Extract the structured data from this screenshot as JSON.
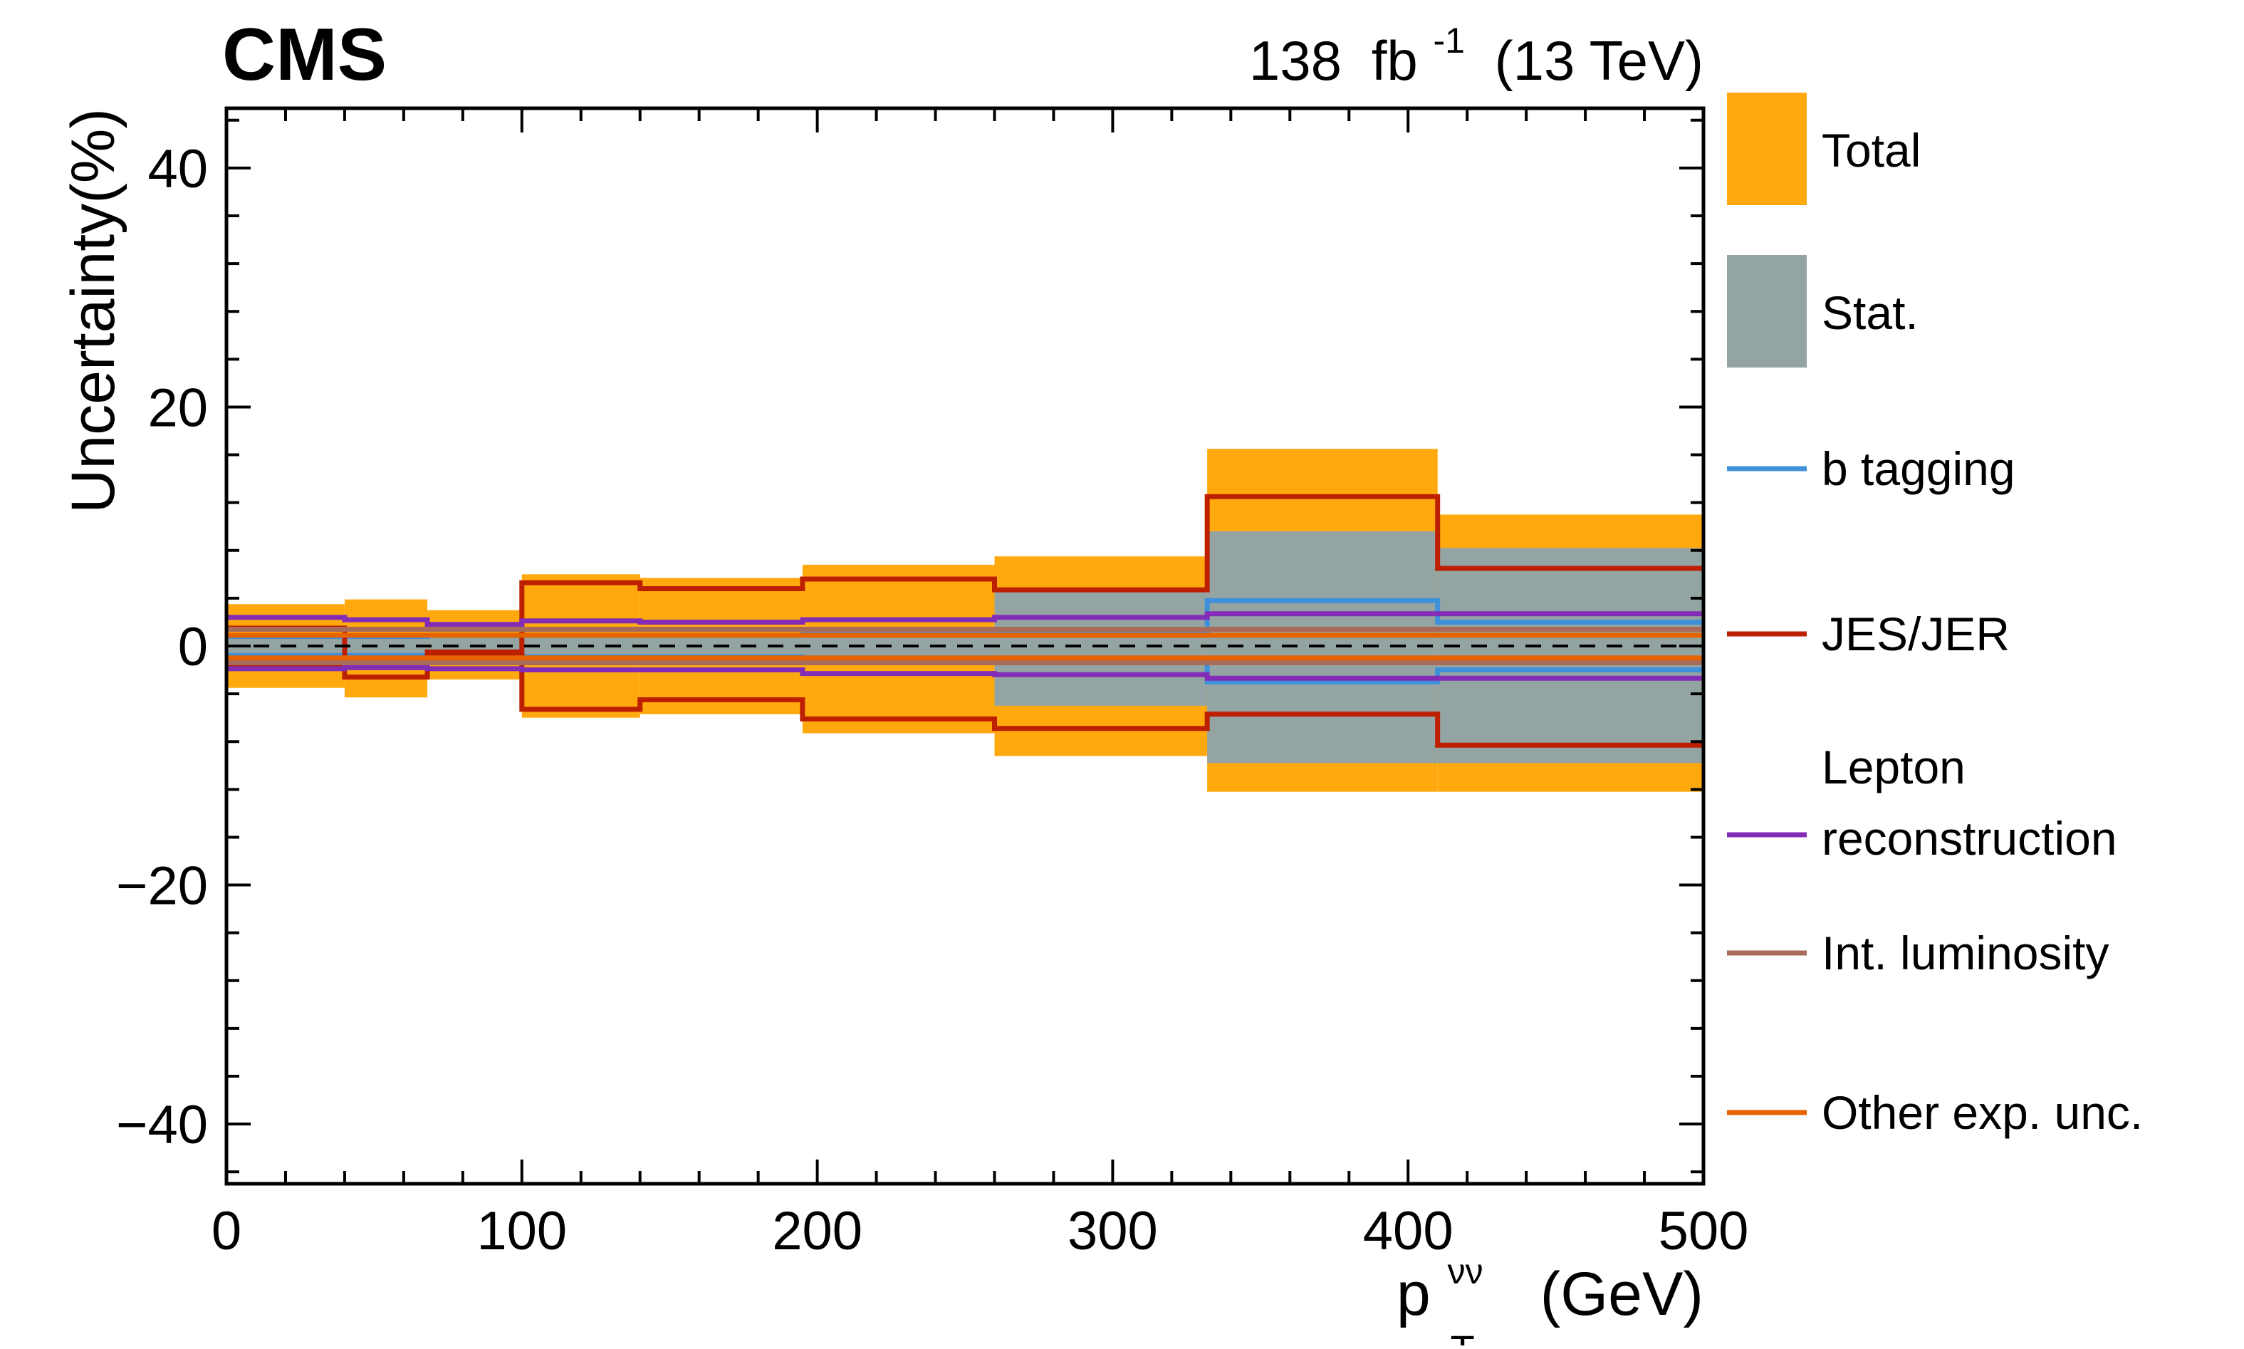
{
  "chart_data": {
    "type": "step",
    "experiment_label": "CMS",
    "lumi_value": "138",
    "lumi_unit": "fb",
    "lumi_exponent": "-1",
    "energy_label": "(13 TeV)",
    "ylabel": "Uncertainty(%)",
    "xlabel": {
      "base": "p",
      "superscript": "νν",
      "subscript": "T",
      "unit": "(GeV)"
    },
    "xlim": [
      0,
      500
    ],
    "ylim": [
      -45,
      45
    ],
    "xticks": [
      0,
      100,
      200,
      300,
      400,
      500
    ],
    "xtick_labels": [
      "0",
      "100",
      "200",
      "300",
      "400",
      "500"
    ],
    "yticks": [
      -40,
      -20,
      0,
      20,
      40
    ],
    "ytick_labels": [
      "−40",
      "−20",
      "0",
      "20",
      "40"
    ],
    "bin_edges": [
      0,
      40,
      68,
      100,
      140,
      195,
      260,
      332,
      410,
      500
    ],
    "reference_line": {
      "y": 0,
      "style": "dashed"
    },
    "bands": [
      {
        "name": "Total",
        "color": "#ffa90e",
        "up": [
          3.5,
          3.9,
          3.0,
          6.0,
          5.7,
          6.8,
          7.5,
          16.5,
          11.0
        ],
        "down": [
          -3.5,
          -4.3,
          -2.8,
          -6.0,
          -5.7,
          -7.3,
          -9.2,
          -12.2,
          -12.2
        ]
      },
      {
        "name": "Stat.",
        "color": "#94a4a2",
        "up": [
          0.7,
          0.7,
          0.9,
          0.9,
          0.9,
          1.0,
          4.5,
          9.6,
          8.2
        ],
        "down": [
          -0.7,
          -0.7,
          -0.9,
          -0.9,
          -0.9,
          -1.0,
          -5.0,
          -9.8,
          -9.8
        ]
      }
    ],
    "series": [
      {
        "name": "b tagging",
        "color": "#3f90da",
        "up": [
          0.8,
          0.8,
          0.9,
          0.9,
          0.9,
          1.0,
          1.2,
          3.8,
          2.0
        ],
        "down": [
          -0.8,
          -0.8,
          -0.9,
          -0.9,
          -0.9,
          -1.0,
          -1.2,
          -3.0,
          -2.0
        ]
      },
      {
        "name": "JES/JER",
        "color": "#bd1f01",
        "up": [
          1.5,
          -1.8,
          -0.5,
          5.3,
          4.8,
          5.6,
          4.7,
          12.5,
          6.5
        ],
        "down": [
          -1.5,
          -2.6,
          -0.8,
          -5.3,
          -4.5,
          -6.1,
          -6.9,
          -5.7,
          -8.3
        ]
      },
      {
        "name": "Lepton reconstruction",
        "color": "#832db6",
        "up": [
          2.4,
          2.2,
          1.8,
          2.1,
          2.0,
          2.2,
          2.4,
          2.7,
          2.7
        ],
        "down": [
          -1.9,
          -1.8,
          -1.9,
          -2.0,
          -2.0,
          -2.3,
          -2.4,
          -2.7,
          -2.7
        ]
      },
      {
        "name": "Int. luminosity",
        "color": "#a96b59",
        "up": [
          1.4,
          1.4,
          1.4,
          1.4,
          1.4,
          1.4,
          1.4,
          1.4,
          1.4
        ],
        "down": [
          -1.4,
          -1.4,
          -1.4,
          -1.4,
          -1.4,
          -1.4,
          -1.4,
          -1.4,
          -1.4
        ]
      },
      {
        "name": "Other exp. unc.",
        "color": "#e76300",
        "up": [
          0.9,
          0.9,
          0.9,
          0.9,
          0.9,
          0.9,
          0.9,
          0.9,
          0.9
        ],
        "down": [
          -1.0,
          -1.0,
          -1.0,
          -1.0,
          -1.0,
          -1.0,
          -1.0,
          -1.0,
          -1.0
        ]
      }
    ],
    "legend": [
      {
        "kind": "band",
        "color": "#ffa90e",
        "lines": [
          "Total"
        ]
      },
      {
        "kind": "band",
        "color": "#94a4a2",
        "lines": [
          "Stat."
        ]
      },
      {
        "kind": "line",
        "color": "#3f90da",
        "lines": [
          "b tagging"
        ]
      },
      {
        "kind": "line",
        "color": "#bd1f01",
        "lines": [
          "JES/JER"
        ]
      },
      {
        "kind": "line",
        "color": "#832db6",
        "lines": [
          "Lepton",
          "reconstruction"
        ]
      },
      {
        "kind": "line",
        "color": "#a96b59",
        "lines": [
          "Int. luminosity"
        ]
      },
      {
        "kind": "line",
        "color": "#e76300",
        "lines": [
          "Other exp. unc."
        ]
      }
    ],
    "legend_position": "right, outside axes"
  }
}
